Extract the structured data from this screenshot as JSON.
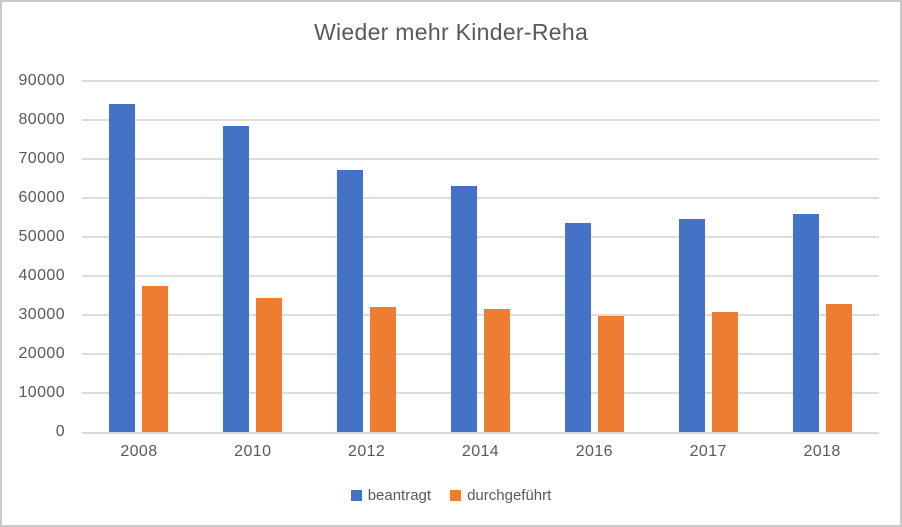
{
  "chart_data": {
    "type": "bar",
    "title": "Wieder mehr Kinder-Reha",
    "categories": [
      "2008",
      "2010",
      "2012",
      "2014",
      "2016",
      "2017",
      "2018"
    ],
    "series": [
      {
        "name": "beantragt",
        "color": "#4472C4",
        "values": [
          84000,
          78500,
          67200,
          63000,
          53700,
          54500,
          56000
        ]
      },
      {
        "name": "durchgeführt",
        "color": "#ED7D31",
        "values": [
          37500,
          34300,
          32000,
          31500,
          29800,
          30700,
          32700
        ]
      }
    ],
    "xlabel": "",
    "ylabel": "",
    "ylim": [
      0,
      90000
    ],
    "y_tick_labels": [
      "0",
      "10000",
      "20000",
      "30000",
      "40000",
      "50000",
      "60000",
      "70000",
      "80000",
      "90000"
    ],
    "grid": true,
    "legend_position": "bottom"
  },
  "colors": {
    "bar_blue": "#4472C4",
    "bar_orange": "#ED7D31",
    "text": "#595959",
    "gridline": "#DDDDDD",
    "axis_line": "#D9D9D9",
    "frame_border": "#C9C9C9",
    "background": "#FFFFFF"
  }
}
